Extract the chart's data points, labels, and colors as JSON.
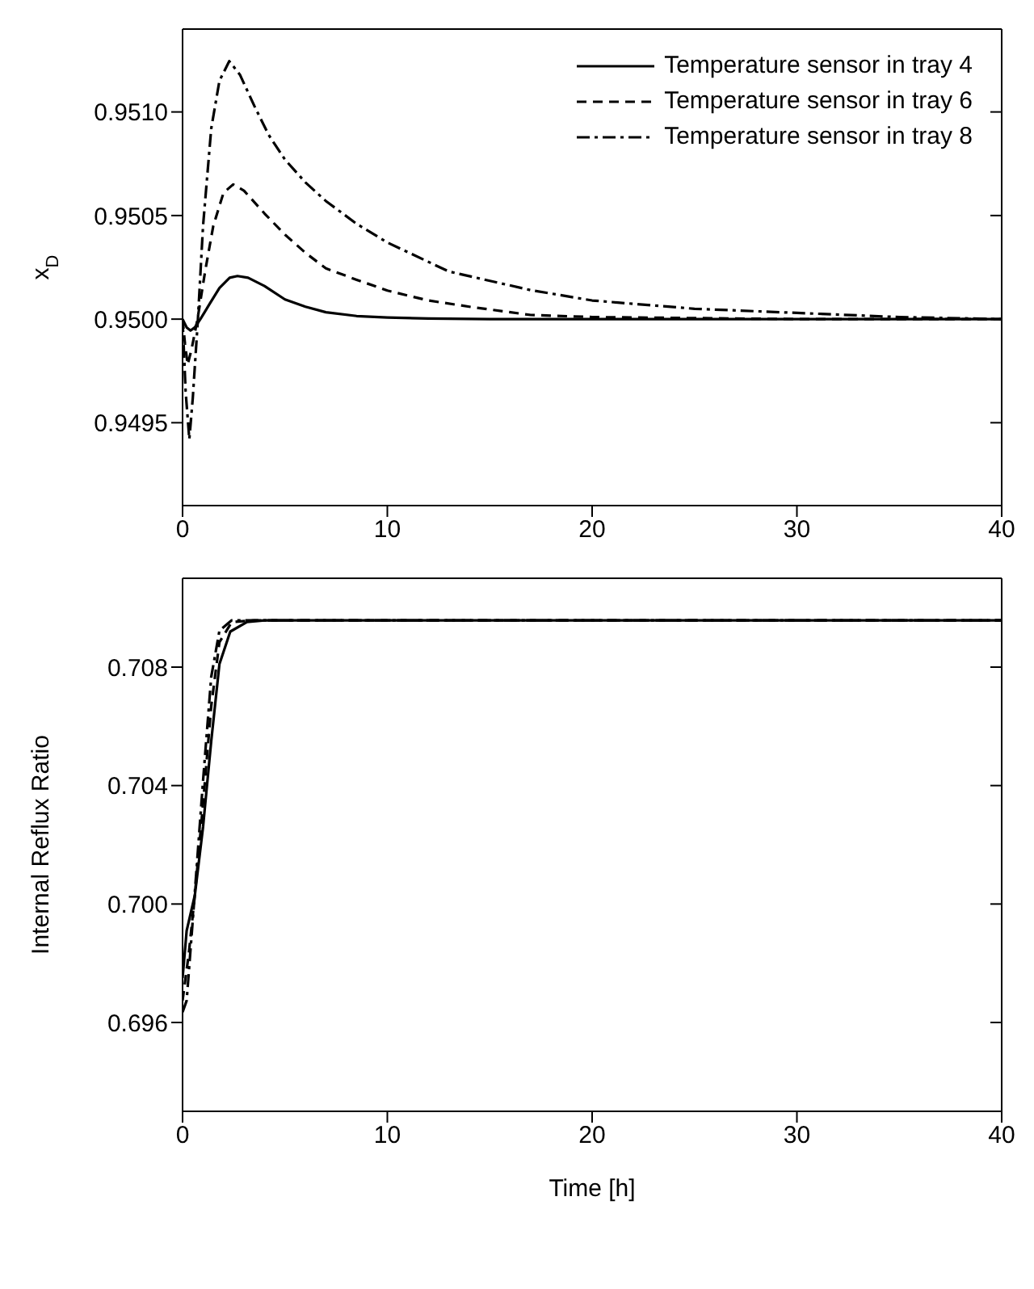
{
  "chart_data": [
    {
      "type": "line",
      "ylabel": "x$_{D}$",
      "xlim": [
        0,
        40
      ],
      "xticks": [
        0,
        10,
        20,
        30,
        40
      ],
      "ylim": [
        0.9491,
        0.9514
      ],
      "yticks": [
        {
          "value": 0.9495,
          "label": "0.9495"
        },
        {
          "value": 0.95,
          "label": "0.9500"
        },
        {
          "value": 0.9505,
          "label": "0.9505"
        },
        {
          "value": 0.951,
          "label": "0.9510"
        }
      ],
      "legend": "top right",
      "series": [
        {
          "name": "Temperature sensor in tray 4",
          "color": "#000000",
          "line_style": "solid",
          "x": [
            0,
            0.2,
            0.39,
            0.6,
            0.87,
            1.3,
            1.8,
            2.3,
            2.68,
            3.2,
            4,
            5,
            6,
            7,
            8.5,
            10,
            12,
            15,
            20,
            30,
            40
          ],
          "values": [
            0.95,
            0.94996,
            0.949945,
            0.94996,
            0.95,
            0.95007,
            0.95015,
            0.9502,
            0.950208,
            0.9502,
            0.95016,
            0.950095,
            0.95006,
            0.950033,
            0.950015,
            0.950008,
            0.950003,
            0.95,
            0.95,
            0.95,
            0.95
          ]
        },
        {
          "name": "Temperature sensor in tray 6",
          "color": "#000000",
          "line_style": "dashed",
          "x": [
            0,
            0.12,
            0.25,
            0.45,
            0.73,
            1.1,
            1.5,
            2.0,
            2.47,
            3.0,
            4,
            5,
            6,
            7,
            8.5,
            10,
            12,
            14,
            17,
            20,
            25,
            30,
            40
          ],
          "values": [
            0.95,
            0.94988,
            0.94978,
            0.94986,
            0.95,
            0.95023,
            0.95045,
            0.95061,
            0.95065,
            0.95062,
            0.95051,
            0.950408,
            0.95032,
            0.950245,
            0.95019,
            0.950138,
            0.95009,
            0.95006,
            0.95002,
            0.95001,
            0.950005,
            0.95,
            0.95
          ]
        },
        {
          "name": "Temperature sensor in tray 8",
          "color": "#000000",
          "line_style": "dashdot",
          "x": [
            0,
            0.15,
            0.33,
            0.5,
            0.75,
            1.0,
            1.4,
            1.8,
            2.28,
            2.8,
            3.5,
            4.2,
            5,
            6,
            7,
            8.5,
            10,
            13,
            17,
            20,
            25,
            30,
            35,
            40
          ],
          "values": [
            0.95,
            0.94965,
            0.94942,
            0.94962,
            0.95,
            0.95045,
            0.95092,
            0.95115,
            0.951245,
            0.95118,
            0.95103,
            0.95089,
            0.95077,
            0.95066,
            0.95057,
            0.95046,
            0.95037,
            0.95023,
            0.95014,
            0.95009,
            0.95005,
            0.95003,
            0.95001,
            0.95
          ]
        }
      ]
    },
    {
      "type": "line",
      "ylabel": "Internal Reflux Ratio",
      "xlabel": "Time [h]",
      "xlim": [
        0,
        40
      ],
      "xticks": [
        0,
        10,
        20,
        30,
        40
      ],
      "ylim": [
        0.693,
        0.711
      ],
      "yticks": [
        0.696,
        {
          "value": 0.7,
          "label": "0.700"
        },
        0.704,
        0.708
      ],
      "series": [
        {
          "color": "#000000",
          "line_style": "solid",
          "x": [
            0,
            0.2,
            0.6,
            1.0,
            1.4,
            1.8,
            2.33,
            3.13,
            4,
            10,
            20,
            30,
            40
          ],
          "values": [
            0.6975,
            0.6991,
            0.7003,
            0.7026,
            0.7055,
            0.7081,
            0.7092,
            0.70952,
            0.70958,
            0.70958,
            0.70958,
            0.70958,
            0.70958
          ]
        },
        {
          "color": "#000000",
          "line_style": "dashed",
          "x": [
            0,
            0.3,
            0.6,
            1.0,
            1.4,
            1.8,
            2.4,
            3.5,
            10,
            20,
            30,
            40
          ],
          "values": [
            0.69674,
            0.6983,
            0.7003,
            0.70338,
            0.70669,
            0.70884,
            0.70952,
            0.70958,
            0.70958,
            0.70958,
            0.70958,
            0.70958
          ]
        },
        {
          "color": "#000000",
          "line_style": "dashdot",
          "x": [
            0,
            0.2,
            0.5,
            1.0,
            1.4,
            1.8,
            2.4,
            10,
            20,
            30,
            40
          ],
          "values": [
            0.69635,
            0.69674,
            0.69947,
            0.70416,
            0.70767,
            0.70923,
            0.70958,
            0.70958,
            0.70958,
            0.70958,
            0.70958
          ]
        }
      ]
    }
  ]
}
